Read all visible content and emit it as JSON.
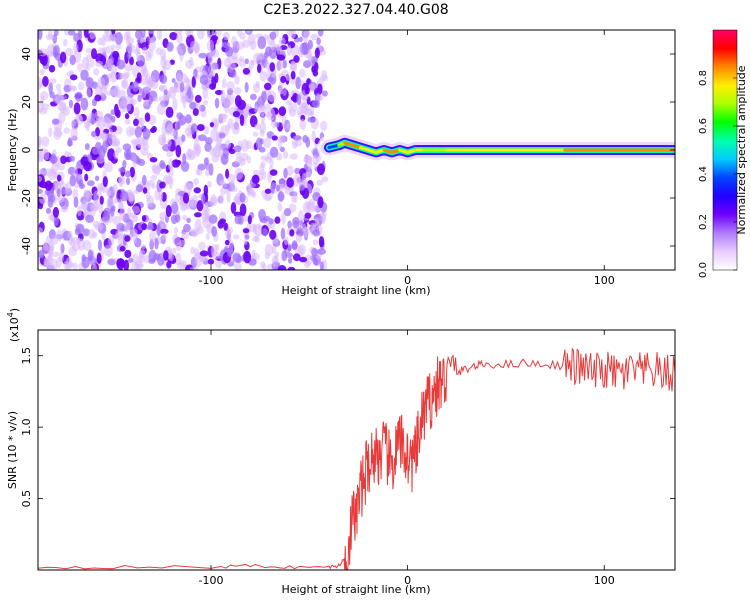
{
  "page_title": "C2E3.2022.327.04.40.G08",
  "chart_data": [
    {
      "type": "heatmap",
      "xlabel": "Height of straight line (km)",
      "ylabel": "Frequency (Hz)",
      "xlim": [
        -188,
        136
      ],
      "ylim": [
        -50,
        50
      ],
      "xticks": [
        -100,
        0,
        100
      ],
      "yticks": [
        -40,
        -20,
        0,
        20,
        40
      ],
      "colorbar": {
        "label": "Normalized spectral amplitude",
        "range": [
          0,
          1
        ],
        "ticks": [
          "0.0",
          "0.2",
          "0.4",
          "0.6",
          "0.8"
        ],
        "colors": [
          "#ffffff",
          "#e8ccff",
          "#b07cff",
          "#7000ff",
          "#2200ff",
          "#0044ff",
          "#00ccff",
          "#00ffaa",
          "#00ff00",
          "#aaff00",
          "#ffee00",
          "#ff8800",
          "#ff0000",
          "#ff0066"
        ]
      },
      "noise_region": {
        "x_range": [
          -188,
          -42
        ],
        "y_range": [
          -50,
          50
        ],
        "description_level": 0.15
      },
      "signal_trace": {
        "x": [
          -40,
          -35,
          -32,
          -28,
          -24,
          -20,
          -16,
          -12,
          -8,
          -4,
          0,
          4,
          8,
          12,
          20,
          40,
          60,
          80,
          90,
          100,
          110,
          120,
          136
        ],
        "y": [
          1,
          2,
          3,
          2,
          1,
          0,
          -1,
          0,
          -1,
          0,
          -1,
          0,
          0,
          0,
          0,
          0,
          0,
          0,
          0,
          0,
          0,
          0,
          0
        ],
        "amplitude": [
          0.4,
          0.7,
          0.85,
          0.85,
          0.8,
          0.8,
          0.8,
          0.85,
          0.85,
          0.8,
          0.8,
          0.8,
          0.75,
          0.75,
          0.8,
          0.8,
          0.8,
          0.85,
          0.9,
          0.9,
          0.85,
          0.85,
          0.85
        ]
      }
    },
    {
      "type": "line",
      "xlabel": "Height of straight line (km)",
      "ylabel": "SNR (10 * v/v)",
      "scale_label": "(x10",
      "scale_exponent": "4",
      "scale_suffix": ")",
      "xlim": [
        -188,
        136
      ],
      "ylim": [
        0,
        1.68
      ],
      "xticks": [
        -100,
        0,
        100
      ],
      "yticks": [
        "0.5",
        "1.0",
        "1.5"
      ],
      "ytick_values": [
        0.5,
        1.0,
        1.5
      ],
      "line_color": "#e83a3a",
      "series": [
        {
          "x": [
            -188,
            -150,
            -100,
            -80,
            -60,
            -40,
            -35,
            -32,
            -30,
            -28,
            -26,
            -24,
            -22,
            -20,
            -18,
            -16,
            -14,
            -12,
            -10,
            -8,
            -6,
            -4,
            -2,
            0,
            2,
            4,
            6,
            8,
            10,
            12,
            14,
            16,
            18,
            20,
            25,
            30,
            35,
            40,
            50,
            60,
            70,
            80,
            85,
            90,
            95,
            100,
            105,
            110,
            115,
            120,
            125,
            130,
            136
          ],
          "y": [
            0.02,
            0.02,
            0.02,
            0.03,
            0.02,
            0.02,
            0.03,
            0.08,
            0.2,
            0.35,
            0.4,
            0.55,
            0.65,
            0.75,
            0.78,
            0.82,
            0.8,
            0.85,
            0.78,
            0.72,
            0.82,
            0.9,
            0.85,
            0.8,
            0.75,
            0.8,
            0.95,
            1.1,
            1.15,
            1.2,
            1.25,
            1.3,
            1.32,
            1.35,
            1.38,
            1.41,
            1.43,
            1.44,
            1.44,
            1.45,
            1.44,
            1.43,
            1.42,
            1.41,
            1.38,
            1.4,
            1.38,
            1.37,
            1.4,
            1.38,
            1.4,
            1.37,
            1.38
          ]
        }
      ]
    }
  ]
}
